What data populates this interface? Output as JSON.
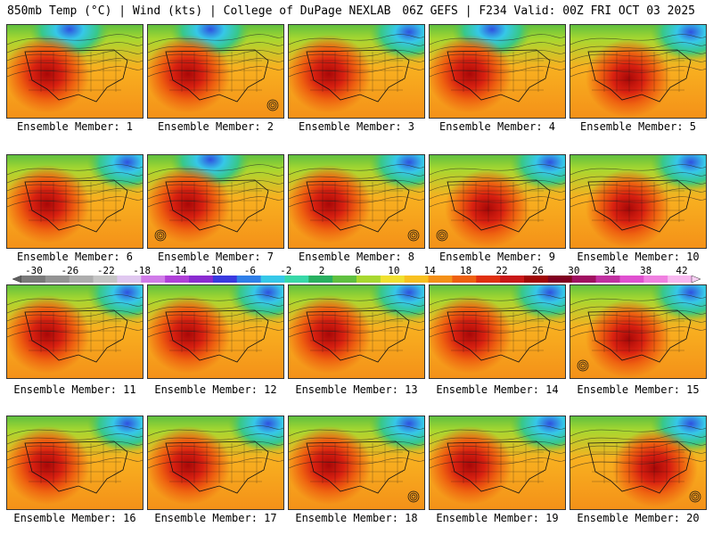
{
  "header": {
    "left": "850mb Temp (°C) | Wind (kts) | College of DuPage NEXLAB",
    "right": "06Z GEFS | F234 Valid: 00Z FRI OCT 03 2025"
  },
  "label_prefix": "Ensemble Member: ",
  "members": [
    {
      "label": "Ensemble Member: 1",
      "heat": "west",
      "cool": "north",
      "storm": false
    },
    {
      "label": "Ensemble Member: 2",
      "heat": "west",
      "cool": "north",
      "storm": true
    },
    {
      "label": "Ensemble Member: 3",
      "heat": "west",
      "cool": "northeast",
      "storm": false
    },
    {
      "label": "Ensemble Member: 4",
      "heat": "west",
      "cool": "north",
      "storm": false
    },
    {
      "label": "Ensemble Member: 5",
      "heat": "central",
      "cool": "northeast",
      "storm": false
    },
    {
      "label": "Ensemble Member: 6",
      "heat": "west",
      "cool": "northeast",
      "storm": false
    },
    {
      "label": "Ensemble Member: 7",
      "heat": "west",
      "cool": "north",
      "storm": true
    },
    {
      "label": "Ensemble Member: 8",
      "heat": "west",
      "cool": "northeast",
      "storm": true
    },
    {
      "label": "Ensemble Member: 9",
      "heat": "central",
      "cool": "northeast",
      "storm": true
    },
    {
      "label": "Ensemble Member: 10",
      "heat": "central",
      "cool": "northeast",
      "storm": false
    },
    {
      "label": "Ensemble Member: 11",
      "heat": "west",
      "cool": "northeast",
      "storm": false
    },
    {
      "label": "Ensemble Member: 12",
      "heat": "west",
      "cool": "northeast",
      "storm": false
    },
    {
      "label": "Ensemble Member: 13",
      "heat": "west",
      "cool": "northeast",
      "storm": false
    },
    {
      "label": "Ensemble Member: 14",
      "heat": "west",
      "cool": "northeast",
      "storm": false
    },
    {
      "label": "Ensemble Member: 15",
      "heat": "central",
      "cool": "northeast",
      "storm": true
    },
    {
      "label": "Ensemble Member: 16",
      "heat": "west",
      "cool": "northeast",
      "storm": false
    },
    {
      "label": "Ensemble Member: 17",
      "heat": "west",
      "cool": "northeast",
      "storm": false
    },
    {
      "label": "Ensemble Member: 18",
      "heat": "west",
      "cool": "northeast",
      "storm": true
    },
    {
      "label": "Ensemble Member: 19",
      "heat": "west",
      "cool": "northeast",
      "storm": false
    },
    {
      "label": "Ensemble Member: 20",
      "heat": "east",
      "cool": "northeast",
      "storm": true
    }
  ],
  "scale": {
    "ticks": [
      "-30",
      "-26",
      "-22",
      "-18",
      "-14",
      "-10",
      "-6",
      "-2",
      "2",
      "6",
      "10",
      "14",
      "18",
      "22",
      "26",
      "30",
      "34",
      "38",
      "42"
    ],
    "colors": [
      "#7a7a7a",
      "#939393",
      "#adadad",
      "#c5c5c5",
      "#e0c8f0",
      "#d07be8",
      "#b040d8",
      "#8a2bd0",
      "#3a3ae0",
      "#2f7fe8",
      "#36c8e8",
      "#38d8a8",
      "#28b060",
      "#60c040",
      "#a8d830",
      "#f0e030",
      "#f8c020",
      "#f49018",
      "#ee6010",
      "#e03010",
      "#c81818",
      "#a00808",
      "#800020",
      "#a01060",
      "#c030a0",
      "#e050d0",
      "#f080e0",
      "#f8b8f0"
    ]
  }
}
